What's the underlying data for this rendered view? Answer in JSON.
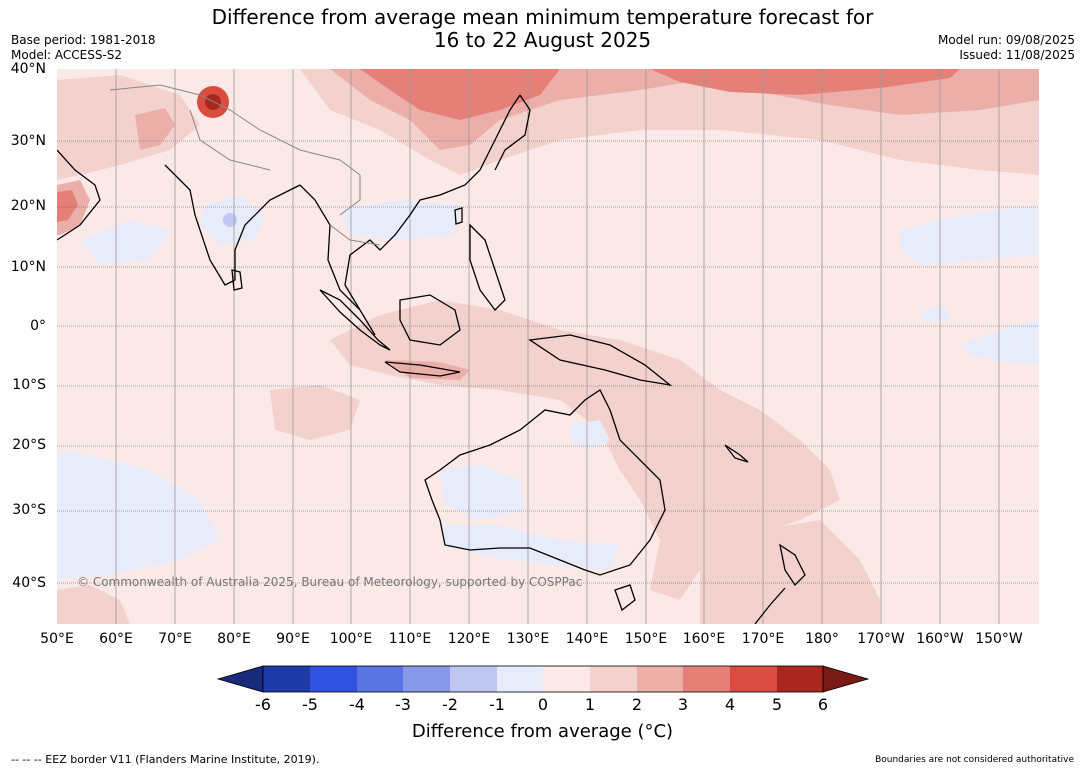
{
  "header": {
    "title_line1": "Difference from average mean minimum temperature forecast for",
    "title_line2": "16 to 22 August 2025",
    "base_period": "Base period: 1981-2018",
    "model": "Model: ACCESS-S2",
    "model_run": "Model run: 09/08/2025",
    "issued": "Issued: 11/08/2025"
  },
  "map": {
    "lat_labels": [
      "40°N",
      "30°N",
      "20°N",
      "10°N",
      "0°",
      "10°S",
      "20°S",
      "30°S",
      "40°S"
    ],
    "lon_labels": [
      "50°E",
      "60°E",
      "70°E",
      "80°E",
      "90°E",
      "100°E",
      "110°E",
      "120°E",
      "130°E",
      "140°E",
      "150°E",
      "160°E",
      "170°E",
      "180°",
      "170°W",
      "160°W",
      "150°W"
    ],
    "copyright": "© Commonwealth of Australia 2025, Bureau of Meteorology, supported by COSPPac",
    "background_anomaly": "0 to 1"
  },
  "colorbar": {
    "ticks": [
      "-6",
      "-5",
      "-4",
      "-3",
      "-2",
      "-1",
      "0",
      "1",
      "2",
      "3",
      "4",
      "5",
      "6"
    ],
    "colors": [
      "#1f3ba8",
      "#2f52e0",
      "#5b74e4",
      "#8899ea",
      "#c0c8f2",
      "#e8ecfa",
      "#fbe9e7",
      "#f3d1cd",
      "#ecaea8",
      "#e58078",
      "#db4c40",
      "#a8271f"
    ],
    "under_color": "#1a2a7a",
    "over_color": "#7a1a16",
    "title": "Difference from average (°C)"
  },
  "footer": {
    "left": "--  --  -- EEZ border V11 (Flanders Marine Institute, 2019).",
    "right": "Boundaries are not considered authoritative"
  }
}
